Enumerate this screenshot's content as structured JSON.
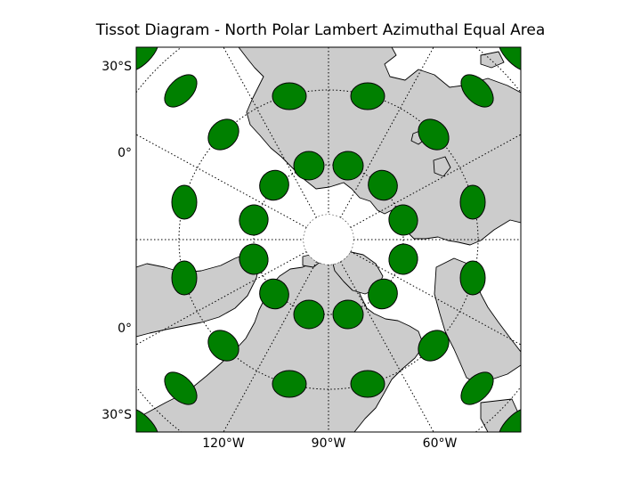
{
  "title": "Tissot Diagram - North Polar Lambert Azimuthal Equal Area",
  "map": {
    "projection": "North Polar Lambert Azimuthal Equal Area",
    "land_color": "#cccccc",
    "ocean_color": "#ffffff",
    "indicatrix_color": "#008000",
    "graticule_style": "dotted",
    "left_labels": [
      "30°S",
      "0°",
      "0°",
      "30°S"
    ],
    "bottom_labels": [
      "120°W",
      "90°W",
      "60°W"
    ]
  }
}
